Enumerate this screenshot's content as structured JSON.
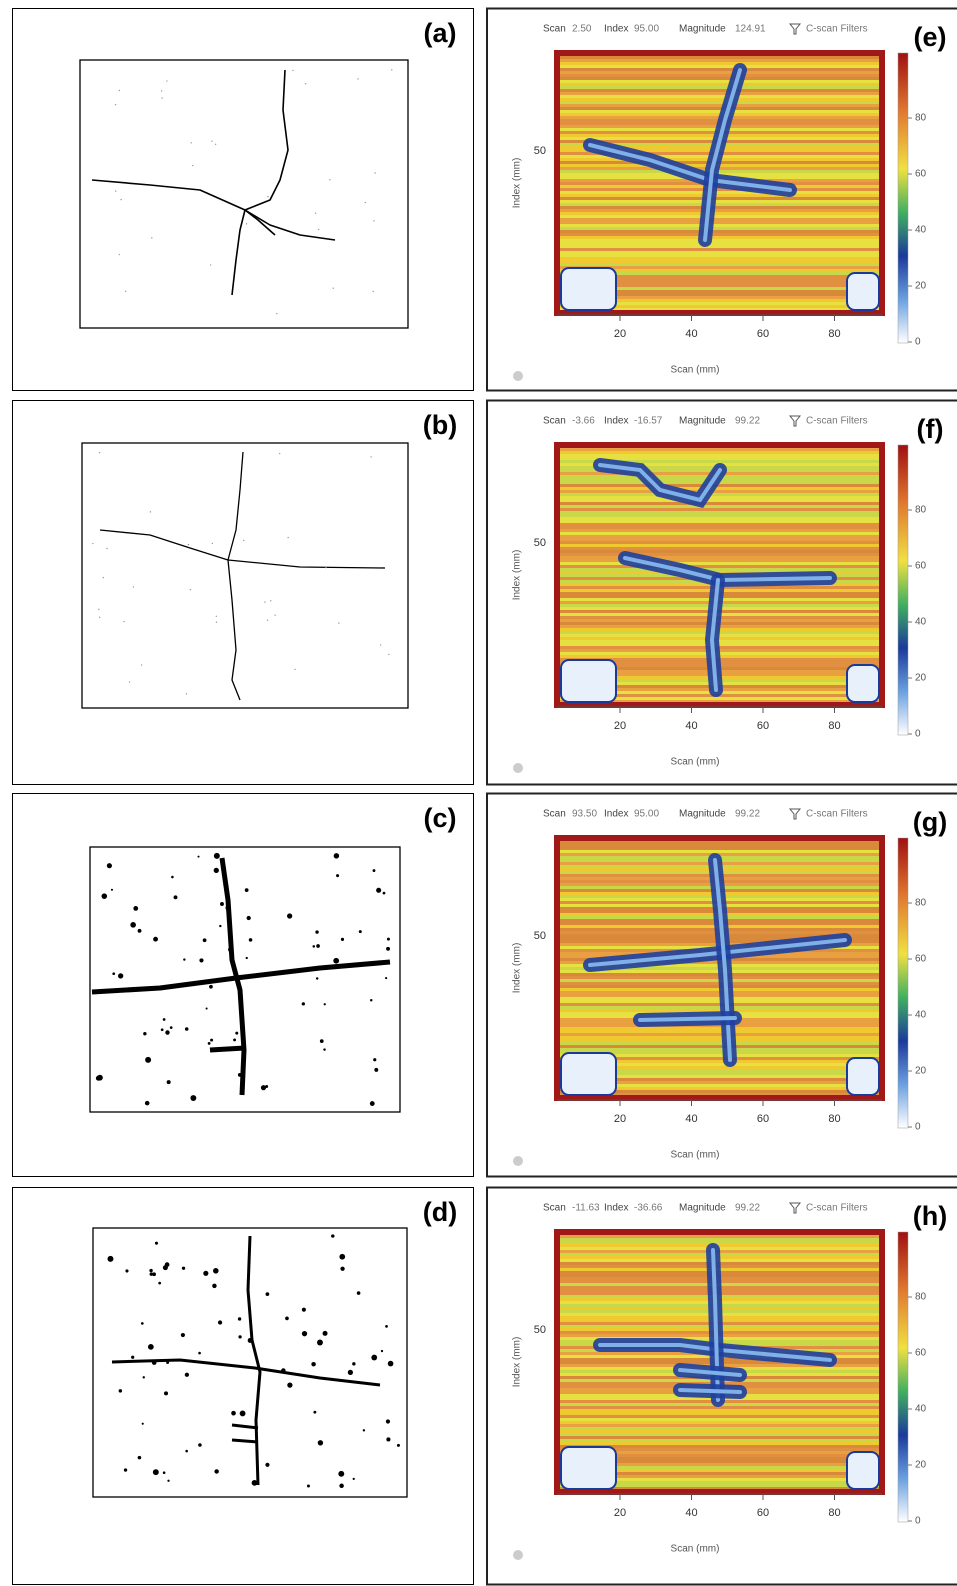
{
  "panels": [
    {
      "label": "(a)"
    },
    {
      "label": "(b)"
    },
    {
      "label": "(c)"
    },
    {
      "label": "(d)"
    }
  ],
  "cscans": [
    {
      "label": "(e)",
      "scan_label": "Scan",
      "scan": "2.50",
      "index_label": "Index",
      "index": "95.00",
      "magnitude_label": "Magnitude",
      "magnitude": "124.91",
      "filters": "C-scan Filters",
      "y_axis_title": "Index (mm)",
      "y_tick": "50",
      "x_ticks": [
        "20",
        "40",
        "60",
        "80"
      ],
      "x_axis_title": "Scan (mm)",
      "colorbar_ticks": [
        "80",
        "60",
        "40",
        "20",
        "0"
      ]
    },
    {
      "label": "(f)",
      "scan_label": "Scan",
      "scan": "-3.66",
      "index_label": "Index",
      "index": "-16.57",
      "magnitude_label": "Magnitude",
      "magnitude": "99.22",
      "filters": "C-scan Filters",
      "y_axis_title": "Index (mm)",
      "y_tick": "50",
      "x_ticks": [
        "20",
        "40",
        "60",
        "80"
      ],
      "x_axis_title": "Scan (mm)",
      "colorbar_ticks": [
        "80",
        "60",
        "40",
        "20",
        "0"
      ]
    },
    {
      "label": "(g)",
      "scan_label": "Scan",
      "scan": "93.50",
      "index_label": "Index",
      "index": "95.00",
      "magnitude_label": "Magnitude",
      "magnitude": "99.22",
      "filters": "C-scan Filters",
      "y_axis_title": "Index (mm)",
      "y_tick": "50",
      "x_ticks": [
        "20",
        "40",
        "60",
        "80"
      ],
      "x_axis_title": "Scan (mm)",
      "colorbar_ticks": [
        "80",
        "60",
        "40",
        "20",
        "0"
      ]
    },
    {
      "label": "(h)",
      "scan_label": "Scan",
      "scan": "-11.63",
      "index_label": "Index",
      "index": "-36.66",
      "magnitude_label": "Magnitude",
      "magnitude": "99.22",
      "filters": "C-scan Filters",
      "y_axis_title": "Index (mm)",
      "y_tick": "50",
      "x_ticks": [
        "20",
        "40",
        "60",
        "80"
      ],
      "x_axis_title": "Scan (mm)",
      "colorbar_ticks": [
        "80",
        "60",
        "40",
        "20",
        "0"
      ]
    }
  ]
}
